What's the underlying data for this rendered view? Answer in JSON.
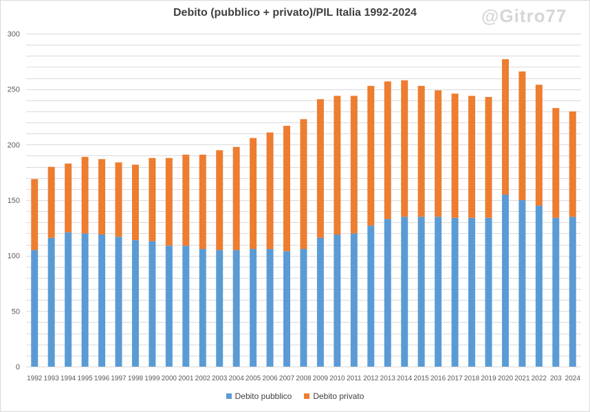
{
  "watermark": "@Gitro77",
  "colors": {
    "pubblico": "#5b9bd5",
    "privato": "#ed7d31",
    "grid": "#d9d9d9",
    "text": "#595959"
  },
  "chart_data": {
    "type": "bar",
    "stacked": true,
    "title": "Debito (pubblico + privato)/PIL Italia 1992-2024",
    "xlabel": "",
    "ylabel": "",
    "ylim": [
      0,
      300
    ],
    "yticks": [
      0,
      50,
      100,
      150,
      200,
      250,
      300
    ],
    "grid": true,
    "legend_position": "bottom",
    "categories": [
      "1992",
      "1993",
      "1994",
      "1995",
      "1996",
      "1997",
      "1998",
      "1999",
      "2000",
      "2001",
      "2002",
      "2003",
      "2004",
      "2005",
      "2006",
      "2007",
      "2008",
      "2009",
      "2010",
      "2011",
      "2012",
      "2013",
      "2014",
      "2015",
      "2016",
      "2017",
      "2018",
      "2019",
      "2020",
      "2021",
      "2022",
      "203",
      "2024"
    ],
    "series": [
      {
        "name": "Debito pubblico",
        "values": [
          105,
          116,
          121,
          120,
          119,
          117,
          114,
          113,
          109,
          109,
          106,
          105,
          105,
          106,
          106,
          104,
          106,
          116,
          119,
          120,
          127,
          133,
          135,
          135,
          135,
          134,
          134,
          134,
          155,
          150,
          145,
          134,
          135
        ]
      },
      {
        "name": "Debito privato",
        "values": [
          64,
          64,
          62,
          69,
          68,
          67,
          68,
          75,
          79,
          82,
          85,
          90,
          93,
          100,
          105,
          113,
          117,
          125,
          125,
          124,
          126,
          124,
          123,
          118,
          114,
          112,
          110,
          109,
          122,
          116,
          109,
          99,
          95
        ]
      }
    ]
  }
}
